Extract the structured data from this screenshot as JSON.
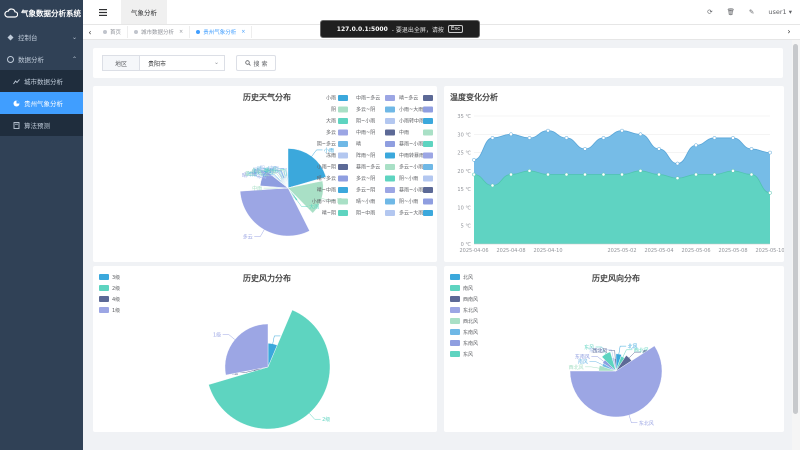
{
  "app": {
    "title": "气象数据分析系统"
  },
  "sidebar": {
    "items": [
      {
        "label": "控制台",
        "icon": "dashboard-icon"
      },
      {
        "label": "数据分析",
        "icon": "chart-icon"
      }
    ],
    "subitems": [
      {
        "label": "城市数据分析",
        "icon": "line-chart-icon"
      },
      {
        "label": "贵州气象分析",
        "icon": "pie-chart-icon"
      },
      {
        "label": "算法预测",
        "icon": "calculator-icon"
      }
    ]
  },
  "topbar": {
    "active_tab": "气象分析",
    "user": "user1"
  },
  "tags": [
    {
      "label": "首页"
    },
    {
      "label": "城市数据分析"
    },
    {
      "label": "贵州气象分析"
    }
  ],
  "fullscreen_toast": {
    "host": "127.0.0.1:5000",
    "message": "- 要退出全屏，请按",
    "key": "Esc"
  },
  "filter": {
    "region_label": "地区",
    "region_value": "贵阳市",
    "search_label": "搜 索"
  },
  "colors": {
    "teal": "#5ed4c0",
    "blue": "#6fb8e6",
    "lavender": "#9ca6e4",
    "cyan": "#3ba8dc",
    "slate": "#5c6996",
    "mint": "#a9e0c6",
    "periwinkle": "#8f9ee0"
  },
  "chart_data": [
    {
      "type": "pie",
      "title": "历史天气分布",
      "rose": true,
      "labels": [
        "小雨",
        "中雨~多云",
        "晴~多云",
        "阴",
        "多云~阴",
        "小雨~大雨",
        "大雨",
        "阴~小雨",
        "小雨转中雨",
        "多云",
        "中雨~阴",
        "中雨",
        "阴~多云",
        "晴",
        "暴雨~小雨",
        "冻雨",
        "阵雨~阴",
        "中雨转暴雨",
        "小雨~阴",
        "暴雨~多云",
        "多云~小雨",
        "晴~多云",
        "多云~阴",
        "阴~小雨",
        "晴~中雨",
        "多云~阴",
        "暴雨~小雨",
        "小雨~中雨",
        "晴~小雨",
        "阴~小雨",
        "晴~阴",
        "阴~中雨",
        "多云~大雨"
      ],
      "values": [
        62,
        2,
        2,
        48,
        2,
        2,
        6,
        3,
        2,
        95,
        2,
        2,
        3,
        28,
        2,
        2,
        3,
        2,
        2,
        2,
        3,
        2,
        3,
        3,
        2,
        2,
        2,
        2,
        3,
        2,
        2,
        3,
        2
      ],
      "callouts": [
        {
          "label": "小雨"
        },
        {
          "label": "阴"
        },
        {
          "label": "大雨"
        },
        {
          "label": "多云"
        },
        {
          "label": "中雨"
        },
        {
          "label": "晴"
        },
        {
          "label": "阵雨~阴"
        },
        {
          "label": "多云~小雨"
        },
        {
          "label": "阴~中雨"
        },
        {
          "label": "晴~阴"
        },
        {
          "label": "阴~小雨"
        },
        {
          "label": "晴~小雨"
        },
        {
          "label": "多云~阴"
        },
        {
          "label": "晴~中雨"
        },
        {
          "label": "小雨~大雨"
        },
        {
          "label": "晴~多云"
        },
        {
          "label": "小雨~阴"
        }
      ]
    },
    {
      "type": "area",
      "title": "温度变化分析",
      "x": [
        "2025-04-06",
        "2025-04-07",
        "2025-04-08",
        "2025-04-09",
        "2025-04-10",
        "2025-04-11",
        "2025-04-12",
        "2025-04-13",
        "2025-05-02",
        "2025-05-03",
        "2025-05-04",
        "2025-05-05",
        "2025-05-06",
        "2025-05-07",
        "2025-05-08",
        "2025-05-09",
        "2025-05-10"
      ],
      "xticks": [
        "2025-04-06",
        "2025-04-08",
        "2025-04-10",
        "2025-05-02",
        "2025-05-04",
        "2025-05-06",
        "2025-05-08",
        "2025-05-10"
      ],
      "series": [
        {
          "name": "最高温度",
          "values": [
            23,
            29,
            30,
            29,
            31,
            29,
            26,
            29,
            31,
            30,
            26,
            22,
            27,
            29,
            29,
            26,
            25
          ]
        },
        {
          "name": "最低温度",
          "values": [
            19,
            16,
            19,
            20,
            19,
            19,
            19,
            19,
            19,
            20,
            19,
            18,
            19,
            19,
            20,
            19,
            14
          ]
        }
      ],
      "yticks": [
        "0 ℃",
        "5 ℃",
        "10 ℃",
        "15 ℃",
        "20 ℃",
        "25 ℃",
        "30 ℃",
        "35 ℃"
      ],
      "ylim": [
        0,
        35
      ]
    },
    {
      "type": "pie",
      "title": "历史风力分布",
      "rose": true,
      "labels": [
        "3级",
        "2级",
        "4级",
        "1级"
      ],
      "values": [
        8,
        80,
        2,
        35
      ],
      "legend": "top-left"
    },
    {
      "type": "pie",
      "title": "历史风向分布",
      "rose": true,
      "labels": [
        "北风",
        "西北风",
        "西南风",
        "东北风",
        "西北风",
        "南风",
        "东南风",
        "东风",
        "东北风",
        "西北风"
      ],
      "legend_labels": [
        "北风",
        "南风",
        "西南风",
        "东北风",
        "西北风",
        "东南风",
        "东南风",
        "东风"
      ],
      "values": [
        8,
        6,
        10,
        90,
        8,
        5,
        6,
        12,
        4,
        3
      ],
      "legend": "top-left"
    }
  ]
}
